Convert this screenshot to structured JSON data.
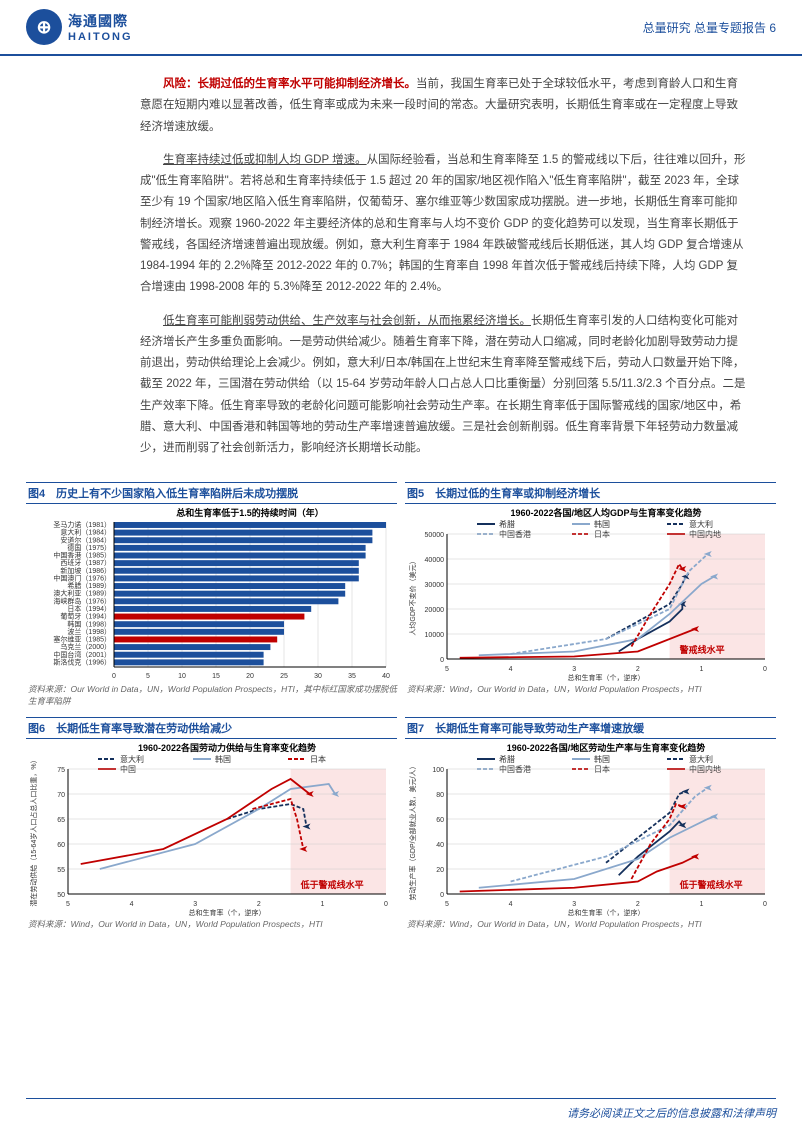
{
  "header": {
    "logo_cn": "海通國際",
    "logo_en": "HAITONG",
    "right": "总量研究 总量专题报告 6"
  },
  "body": {
    "p1_bold": "风险：长期过低的生育率水平可能抑制经济增长。",
    "p1_rest": "当前，我国生育率已处于全球较低水平，考虑到育龄人口和生育意愿在短期内难以显著改善，低生育率或成为未来一段时间的常态。大量研究表明，长期低生育率或在一定程度上导致经济增速放缓。",
    "p2_u": "生育率持续过低或抑制人均 GDP 增速。",
    "p2_rest": "从国际经验看，当总和生育率降至 1.5 的警戒线以下后，往往难以回升，形成\"低生育率陷阱\"。若将总和生育率持续低于 1.5 超过 20 年的国家/地区视作陷入\"低生育率陷阱\"，截至 2023 年，全球至少有 19 个国家/地区陷入低生育率陷阱，仅葡萄牙、塞尔维亚等少数国家成功摆脱。进一步地，长期低生育率可能抑制经济增长。观察 1960-2022 年主要经济体的总和生育率与人均不变价 GDP 的变化趋势可以发现，当生育率长期低于警戒线，各国经济增速普遍出现放缓。例如，意大利生育率于 1984 年跌破警戒线后长期低迷，其人均 GDP 复合增速从 1984-1994 年的 2.2%降至 2012-2022 年的 0.7%；韩国的生育率自 1998 年首次低于警戒线后持续下降，人均 GDP 复合增速由 1998-2008 年的 5.3%降至 2012-2022 年的 2.4%。",
    "p3_u": "低生育率可能削弱劳动供给、生产效率与社会创新，从而拖累经济增长。",
    "p3_rest": "长期低生育率引发的人口结构变化可能对经济增长产生多重负面影响。一是劳动供给减少。随着生育率下降，潜在劳动人口缩减，同时老龄化加剧导致劳动力提前退出，劳动供给理论上会减少。例如，意大利/日本/韩国在上世纪末生育率降至警戒线下后，劳动人口数量开始下降，截至 2022 年，三国潜在劳动供给（以 15-64 岁劳动年龄人口占总人口比重衡量）分别回落 5.5/11.3/2.3 个百分点。二是生产效率下降。低生育率导致的老龄化问题可能影响社会劳动生产率。在长期生育率低于国际警戒线的国家/地区中，希腊、意大利、中国香港和韩国等地的劳动生产率增速普遍放缓。三是社会创新削弱。低生育率背景下年轻劳动力数量减少，进而削弱了社会创新活力，影响经济长期增长动能。"
  },
  "charts": {
    "c4": {
      "title": "图4　历史上有不少国家陷入低生育率陷阱后未成功摆脱",
      "subtitle": "总和生育率低于1.5的持续时间（年）",
      "xmax": 40,
      "xstep": 5,
      "bars": [
        {
          "label": "圣马力诺（1981）",
          "value": 40,
          "color": "#1c4f9c"
        },
        {
          "label": "意大利（1984）",
          "value": 38,
          "color": "#1c4f9c"
        },
        {
          "label": "安道尔（1984）",
          "value": 38,
          "color": "#1c4f9c"
        },
        {
          "label": "德国（1975）",
          "value": 37,
          "color": "#1c4f9c"
        },
        {
          "label": "中国香港（1985）",
          "value": 37,
          "color": "#1c4f9c"
        },
        {
          "label": "西班牙（1987）",
          "value": 36,
          "color": "#1c4f9c"
        },
        {
          "label": "新加坡（1986）",
          "value": 36,
          "color": "#1c4f9c"
        },
        {
          "label": "中国澳门（1976）",
          "value": 36,
          "color": "#1c4f9c"
        },
        {
          "label": "希腊（1989）",
          "value": 34,
          "color": "#1c4f9c"
        },
        {
          "label": "澳大利亚（1989）",
          "value": 34,
          "color": "#1c4f9c"
        },
        {
          "label": "海峡群岛（1976）",
          "value": 33,
          "color": "#1c4f9c"
        },
        {
          "label": "日本（1994）",
          "value": 29,
          "color": "#1c4f9c"
        },
        {
          "label": "葡萄牙（1994）",
          "value": 28,
          "color": "#c00000"
        },
        {
          "label": "韩国（1998）",
          "value": 25,
          "color": "#1c4f9c"
        },
        {
          "label": "波兰（1998）",
          "value": 25,
          "color": "#1c4f9c"
        },
        {
          "label": "塞尔维亚（1985）",
          "value": 24,
          "color": "#c00000"
        },
        {
          "label": "乌克兰（2000）",
          "value": 23,
          "color": "#1c4f9c"
        },
        {
          "label": "中国台湾（2001）",
          "value": 22,
          "color": "#1c4f9c"
        },
        {
          "label": "斯洛伐克（1996）",
          "value": 22,
          "color": "#1c4f9c"
        }
      ],
      "source": "资料来源：Our World in Data，UN，World Population Prospects，HTI，其中标红国家成功摆脱低生育率陷阱"
    },
    "c5": {
      "title": "图5　长期过低的生育率或抑制经济增长",
      "subtitle": "1960-2022各国/地区人均GDP与生育率变化趋势",
      "ylabel": "人均GDP不变价（美元）",
      "xlabel": "总和生育率（个，逆序）",
      "ymax": 50000,
      "ystep": 10000,
      "xvals": [
        5,
        4,
        3,
        2,
        1,
        0
      ],
      "legend": [
        {
          "name": "希腊",
          "color": "#14305c",
          "dash": "0"
        },
        {
          "name": "韩国",
          "color": "#8aa8cc",
          "dash": "0"
        },
        {
          "name": "意大利",
          "color": "#14305c",
          "dash": "4,2"
        },
        {
          "name": "中国香港",
          "color": "#8aa8cc",
          "dash": "4,2"
        },
        {
          "name": "日本",
          "color": "#c00000",
          "dash": "4,2"
        },
        {
          "name": "中国内地",
          "color": "#c00000",
          "dash": "0"
        }
      ],
      "warn": "警戒线水平",
      "source": "资料来源：Wind，Our World in Data，UN，World Population Prospects，HTI"
    },
    "c6": {
      "title": "图6　长期低生育率导致潜在劳动供给减少",
      "subtitle": "1960-2022各国劳动力供给与生育率变化趋势",
      "ylabel": "潜在劳动供给（15-64岁人口占总人口比重，%）",
      "xlabel": "总和生育率（个，逆序）",
      "ymin": 50,
      "ymax": 75,
      "ystep": 5,
      "xvals": [
        5,
        4,
        3,
        2,
        1,
        0
      ],
      "legend": [
        {
          "name": "意大利",
          "color": "#14305c",
          "dash": "4,2"
        },
        {
          "name": "韩国",
          "color": "#8aa8cc",
          "dash": "0"
        },
        {
          "name": "日本",
          "color": "#c00000",
          "dash": "4,2"
        },
        {
          "name": "中国",
          "color": "#c00000",
          "dash": "0"
        }
      ],
      "warn": "低于警戒线水平",
      "source": "资料来源：Wind，Our World in Data，UN，World Population Prospects，HTI"
    },
    "c7": {
      "title": "图7　长期低生育率可能导致劳动生产率增速放缓",
      "subtitle": "1960-2022各国/地区劳动生产率与生育率变化趋势",
      "ylabel": "劳动生产率（GDP/全部就业人数，美元/人）",
      "xlabel": "总和生育率（个，逆序）",
      "ymin": 0,
      "ymax": 100,
      "ystep": 20,
      "xvals": [
        5,
        4,
        3,
        2,
        1,
        0
      ],
      "legend": [
        {
          "name": "希腊",
          "color": "#14305c",
          "dash": "0"
        },
        {
          "name": "韩国",
          "color": "#8aa8cc",
          "dash": "0"
        },
        {
          "name": "意大利",
          "color": "#14305c",
          "dash": "4,2"
        },
        {
          "name": "中国香港",
          "color": "#8aa8cc",
          "dash": "4,2"
        },
        {
          "name": "日本",
          "color": "#c00000",
          "dash": "4,2"
        },
        {
          "name": "中国内地",
          "color": "#c00000",
          "dash": "0"
        }
      ],
      "warn": "低于警戒线水平",
      "source": "资料来源：Wind，Our World in Data，UN，World Population Prospects，HTI"
    }
  },
  "footer": "请务必阅读正文之后的信息披露和法律声明"
}
